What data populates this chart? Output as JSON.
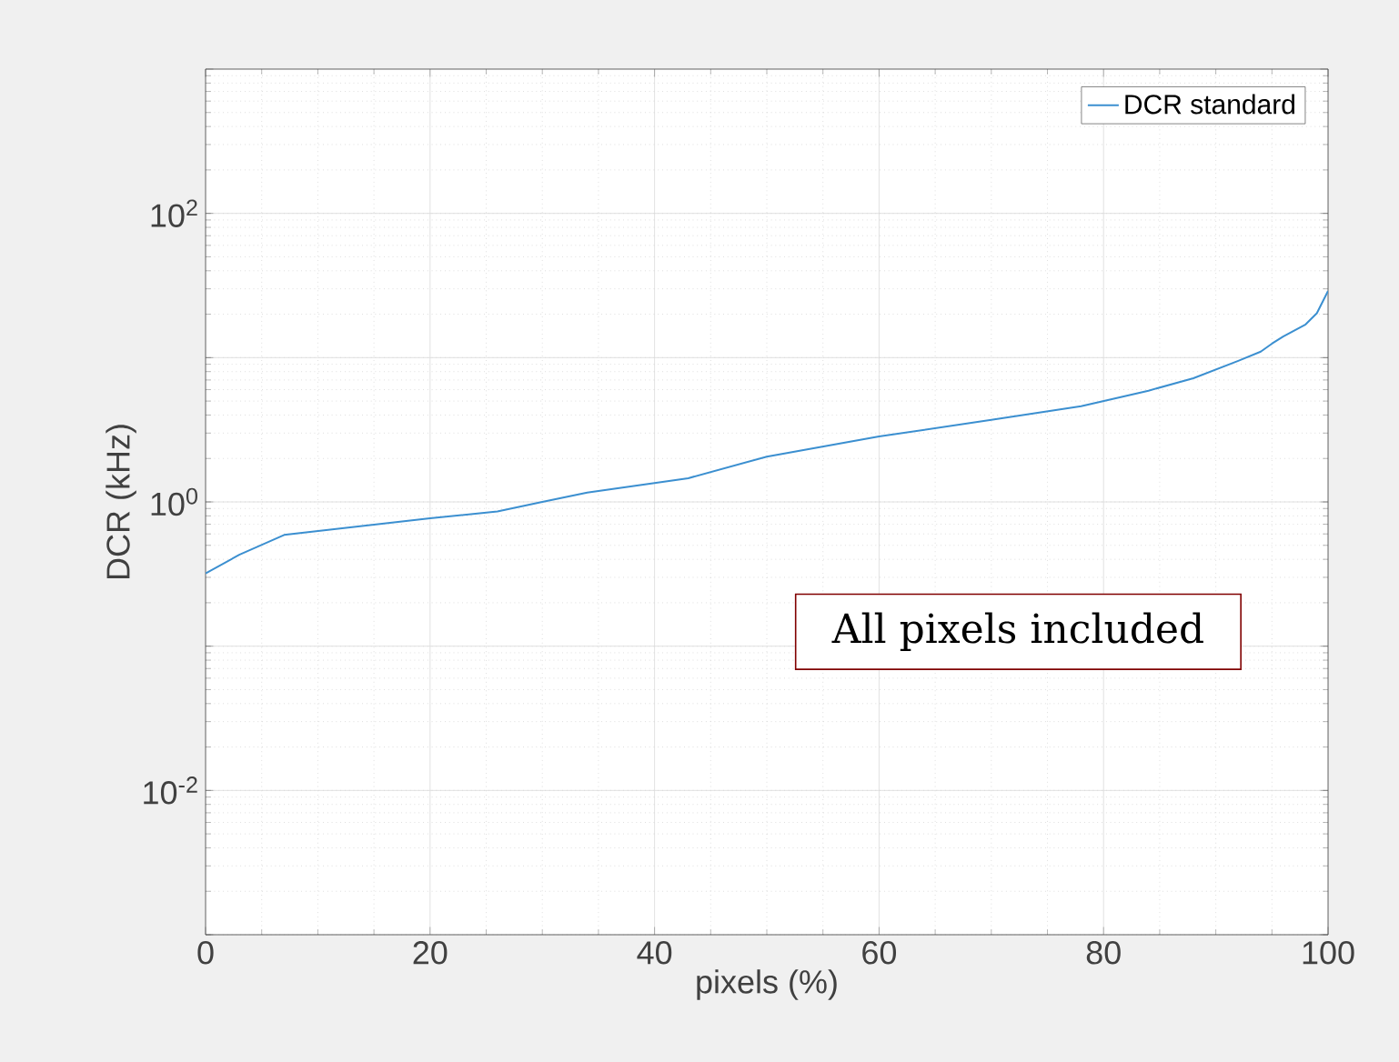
{
  "chart_data": {
    "type": "line",
    "xlabel": "pixels (%)",
    "ylabel": "DCR (kHz)",
    "log": "y",
    "grid": true,
    "legend": "top right",
    "xlim": [
      0,
      100
    ],
    "ylim": [
      0.001,
      1000
    ],
    "xticks": [
      0,
      20,
      40,
      60,
      80,
      100
    ],
    "yticks": [
      {
        "value": 0.001,
        "label": null
      },
      {
        "value": 0.01,
        "label": "10$^{-2}$"
      },
      {
        "value": 0.1,
        "label": null
      },
      {
        "value": 1,
        "label": "10$^{0}$"
      },
      {
        "value": 10,
        "label": null
      },
      {
        "value": 100,
        "label": "10$^{2}$"
      },
      {
        "value": 1000,
        "label": null
      }
    ],
    "annotations": [
      "All pixels included"
    ],
    "series": [
      {
        "name": "DCR standard",
        "color": "#3b8fd0",
        "x": [
          0,
          3,
          7,
          20,
          26,
          30,
          34,
          43,
          50,
          60,
          70,
          78,
          84,
          88,
          92,
          94,
          95,
          96,
          98,
          99,
          100
        ],
        "values": [
          0.32,
          0.43,
          0.59,
          0.77,
          0.86,
          1.0,
          1.16,
          1.46,
          2.06,
          2.84,
          3.7,
          4.6,
          5.9,
          7.2,
          9.5,
          11.0,
          12.5,
          14,
          17,
          20.3,
          29
        ]
      }
    ]
  }
}
